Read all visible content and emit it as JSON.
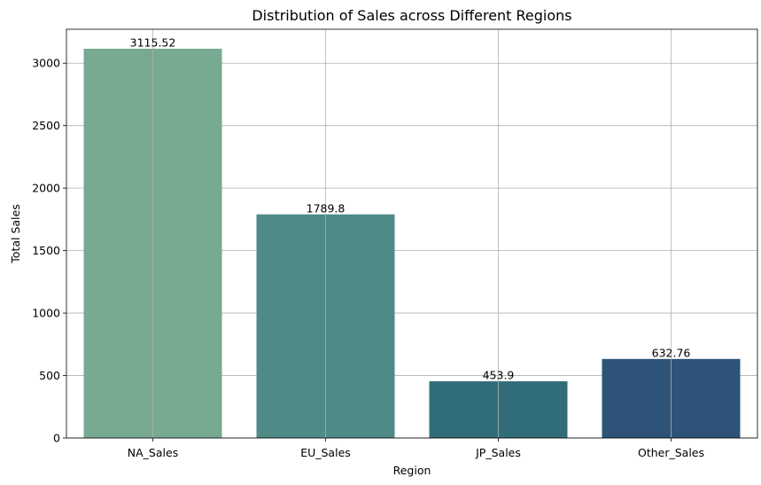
{
  "chart_data": {
    "type": "bar",
    "title": "Distribution of Sales across Different Regions",
    "xlabel": "Region",
    "ylabel": "Total Sales",
    "categories": [
      "NA_Sales",
      "EU_Sales",
      "JP_Sales",
      "Other_Sales"
    ],
    "values": [
      3115.52,
      1789.8,
      453.9,
      632.76
    ],
    "value_labels": [
      "3115.52",
      "1789.8",
      "453.9",
      "632.76"
    ],
    "colors": [
      "#78a991",
      "#4f8b86",
      "#316e7a",
      "#2d5478"
    ],
    "ylim": [
      0,
      3271.3
    ],
    "yticks": [
      0,
      500,
      1000,
      1500,
      2000,
      2500,
      3000
    ],
    "grid": true,
    "legend": "none"
  }
}
